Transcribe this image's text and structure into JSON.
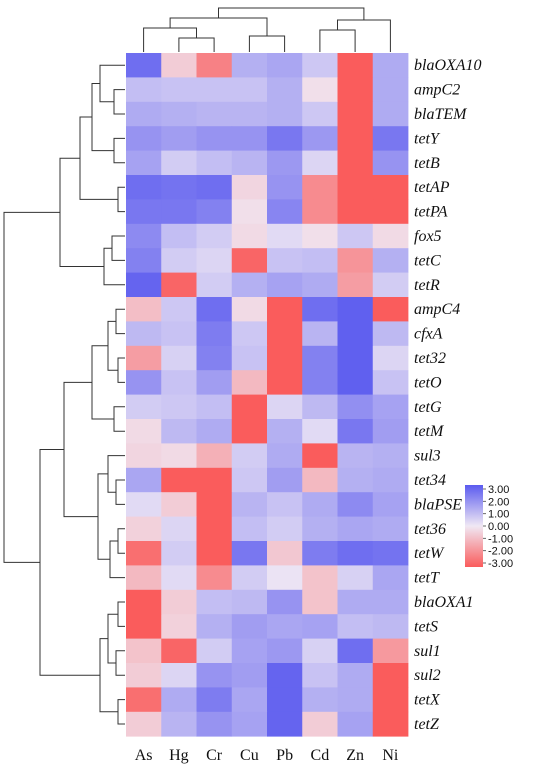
{
  "chart_data": {
    "type": "heatmap",
    "title": "",
    "xlabel": "",
    "ylabel": "",
    "columns": [
      "As",
      "Hg",
      "Cr",
      "Cu",
      "Pb",
      "Cd",
      "Zn",
      "Ni"
    ],
    "rows": [
      "blaOXA10",
      "ampC2",
      "blaTEM",
      "tetY",
      "tetB",
      "tetAP",
      "tetPA",
      "fox5",
      "tetC",
      "tetR",
      "ampC4",
      "cfxA",
      "tet32",
      "tetO",
      "tetG",
      "tetM",
      "sul3",
      "tet34",
      "blaPSE",
      "tet36",
      "tetW",
      "tetT",
      "blaOXA1",
      "tetS",
      "sul1",
      "sul2",
      "tetX",
      "tetZ"
    ],
    "values": [
      [
        2.6,
        -0.6,
        -2.2,
        1.2,
        1.4,
        0.7,
        -3.0,
        1.3
      ],
      [
        0.9,
        0.8,
        0.8,
        0.8,
        1.2,
        -0.2,
        -3.0,
        1.3
      ],
      [
        1.3,
        1.2,
        1.1,
        1.1,
        1.2,
        0.7,
        -3.0,
        1.3
      ],
      [
        1.8,
        1.6,
        1.8,
        1.8,
        2.4,
        1.7,
        -3.0,
        2.4
      ],
      [
        1.5,
        0.6,
        0.9,
        1.1,
        1.7,
        0.4,
        -3.0,
        1.8
      ],
      [
        2.6,
        2.5,
        2.6,
        -0.4,
        1.8,
        -2.0,
        -3.0,
        -3.0
      ],
      [
        2.4,
        2.4,
        2.2,
        -0.2,
        2.1,
        -2.0,
        -3.0,
        -3.0
      ],
      [
        2.0,
        0.9,
        0.6,
        -0.3,
        0.3,
        -0.2,
        0.7,
        -0.3
      ],
      [
        2.2,
        0.6,
        0.4,
        -2.8,
        0.8,
        0.9,
        -1.8,
        1.2
      ],
      [
        2.8,
        -2.8,
        0.6,
        1.2,
        1.5,
        1.3,
        -1.6,
        0.6
      ],
      [
        -0.9,
        0.7,
        2.6,
        -0.3,
        -3.0,
        2.6,
        2.9,
        -3.0
      ],
      [
        1.0,
        0.8,
        2.3,
        0.7,
        -3.0,
        1.1,
        2.9,
        1.0
      ],
      [
        -1.6,
        0.5,
        2.2,
        0.8,
        -3.0,
        2.2,
        2.9,
        0.4
      ],
      [
        1.8,
        0.8,
        1.6,
        -1.0,
        -3.0,
        2.2,
        2.9,
        0.8
      ],
      [
        0.6,
        0.7,
        0.9,
        -3.0,
        0.4,
        1.0,
        1.9,
        1.5
      ],
      [
        -0.3,
        1.0,
        1.3,
        -3.0,
        1.2,
        0.3,
        2.4,
        1.6
      ],
      [
        -0.4,
        -0.3,
        -1.2,
        0.6,
        1.3,
        -3.0,
        1.1,
        1.2
      ],
      [
        1.4,
        -3.0,
        -3.0,
        0.7,
        1.6,
        -1.0,
        1.2,
        1.3
      ],
      [
        0.3,
        -0.6,
        -3.0,
        1.1,
        0.8,
        1.3,
        2.0,
        1.5
      ],
      [
        -0.5,
        0.4,
        -3.0,
        0.9,
        0.6,
        1.2,
        1.4,
        1.3
      ],
      [
        -2.6,
        0.6,
        -3.0,
        2.4,
        -0.7,
        2.3,
        2.6,
        2.5
      ],
      [
        -1.0,
        0.3,
        -2.0,
        0.6,
        0.1,
        -0.8,
        0.5,
        1.4
      ],
      [
        -3.0,
        -0.6,
        0.9,
        1.0,
        1.8,
        -0.8,
        1.3,
        1.3
      ],
      [
        -3.0,
        -0.5,
        1.2,
        1.6,
        1.4,
        1.5,
        0.9,
        1.0
      ],
      [
        -0.8,
        -2.8,
        0.6,
        1.5,
        1.7,
        0.5,
        2.6,
        -1.7
      ],
      [
        -0.6,
        0.4,
        1.8,
        1.6,
        2.8,
        0.8,
        1.3,
        -3.0
      ],
      [
        -2.6,
        1.3,
        2.3,
        1.4,
        2.8,
        1.2,
        1.3,
        -3.0
      ],
      [
        -0.6,
        1.1,
        1.8,
        1.5,
        2.8,
        -0.6,
        1.5,
        -3.0
      ]
    ],
    "colorbar": {
      "ticks": [
        "3.00",
        "2.00",
        "1.00",
        "0.00",
        "-1.00",
        "-2.00",
        "-3.00"
      ],
      "range": [
        -3,
        3
      ],
      "high_color": "#5b5bef",
      "mid_color": "#f0e8f4",
      "low_color": "#fa5c5c"
    },
    "row_dendrogram": true,
    "column_dendrogram": true,
    "legend_position": "right"
  }
}
